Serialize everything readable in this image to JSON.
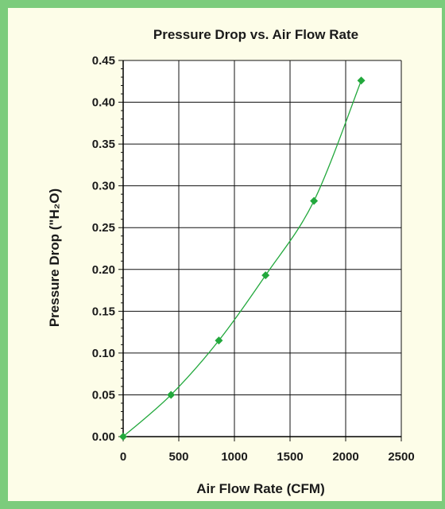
{
  "chart_data": {
    "type": "line",
    "title": "Pressure Drop vs. Air Flow Rate",
    "xlabel": "Air Flow Rate (CFM)",
    "ylabel": "Pressure Drop (\"H₂O)",
    "xlim": [
      0,
      2500
    ],
    "ylim": [
      0,
      0.45
    ],
    "x_ticks": [
      "0",
      "500",
      "1000",
      "1500",
      "2000",
      "2500"
    ],
    "y_ticks": [
      "0.00",
      "0.05",
      "0.10",
      "0.15",
      "0.20",
      "0.25",
      "0.30",
      "0.35",
      "0.40",
      "0.45"
    ],
    "grid": true,
    "series": [
      {
        "x": [
          0,
          430,
          860,
          1280,
          1715,
          2140
        ],
        "y": [
          0.0,
          0.05,
          0.115,
          0.193,
          0.282,
          0.426
        ],
        "color": "#22a83c",
        "marker": "diamond"
      }
    ]
  }
}
